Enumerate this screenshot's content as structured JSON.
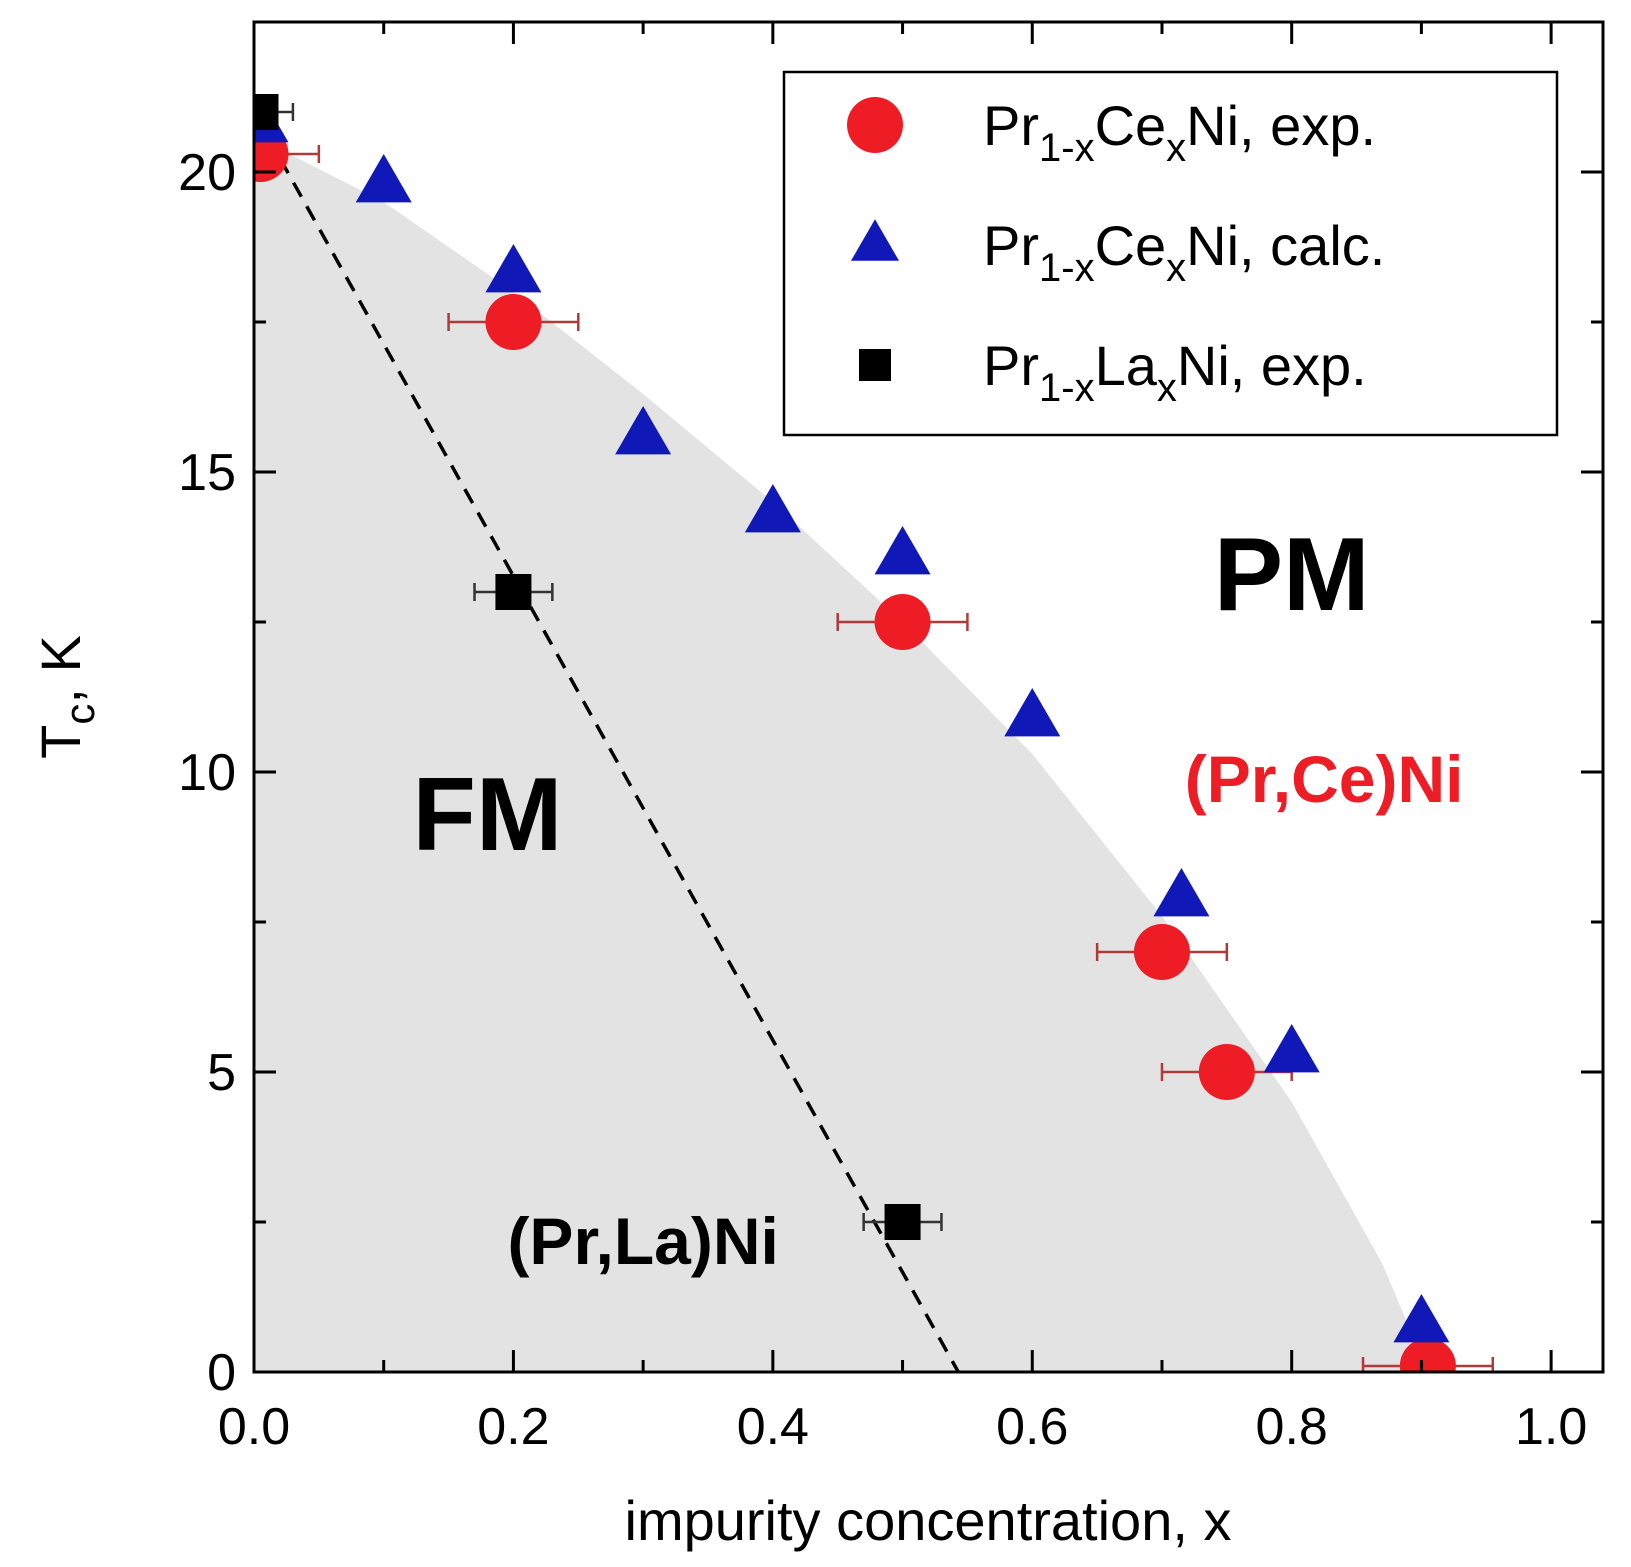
{
  "chart_data": {
    "type": "scatter",
    "xlabel": "impurity concentration, x",
    "ylabel_main": "T",
    "ylabel_sub": "c",
    "ylabel_rest": ", K",
    "xlim": [
      0.0,
      1.04
    ],
    "ylim": [
      0,
      22.5
    ],
    "x_ticks": [
      0.0,
      0.2,
      0.4,
      0.6,
      0.8,
      1.0
    ],
    "x_tick_labels": [
      "0.0",
      "0.2",
      "0.4",
      "0.6",
      "0.8",
      "1.0"
    ],
    "y_ticks": [
      0,
      5,
      10,
      15,
      20
    ],
    "y_tick_labels": [
      "0",
      "5",
      "10",
      "15",
      "20"
    ],
    "x_minor_ticks": [
      0.1,
      0.3,
      0.5,
      0.7,
      0.9
    ],
    "y_minor_ticks": [
      2.5,
      7.5,
      12.5,
      17.5
    ],
    "series": [
      {
        "name": "PrCeNi-exp",
        "legend_main": "Pr",
        "legend_sub1": "1-x",
        "legend_mid": "Ce",
        "legend_sub2": "x",
        "legend_tail": "Ni, exp.",
        "marker": "circle",
        "color": "#ee1c25",
        "errcolor": "#b03a3a",
        "points": [
          {
            "x": 0.005,
            "y": 20.3,
            "xerr": 0.045
          },
          {
            "x": 0.2,
            "y": 17.5,
            "xerr": 0.05
          },
          {
            "x": 0.5,
            "y": 12.5,
            "xerr": 0.05
          },
          {
            "x": 0.7,
            "y": 7.0,
            "xerr": 0.05
          },
          {
            "x": 0.75,
            "y": 5.0,
            "xerr": 0.05
          },
          {
            "x": 0.905,
            "y": 0.1,
            "xerr": 0.05
          }
        ]
      },
      {
        "name": "PrCeNi-calc",
        "legend_main": "Pr",
        "legend_sub1": "1-x",
        "legend_mid": "Ce",
        "legend_sub2": "x",
        "legend_tail": "Ni, calc.",
        "marker": "triangle",
        "color": "#1018b8",
        "points": [
          {
            "x": 0.005,
            "y": 20.8
          },
          {
            "x": 0.1,
            "y": 19.8
          },
          {
            "x": 0.2,
            "y": 18.3
          },
          {
            "x": 0.3,
            "y": 15.6
          },
          {
            "x": 0.4,
            "y": 14.3
          },
          {
            "x": 0.5,
            "y": 13.6
          },
          {
            "x": 0.6,
            "y": 10.9
          },
          {
            "x": 0.715,
            "y": 7.9
          },
          {
            "x": 0.8,
            "y": 5.3
          },
          {
            "x": 0.9,
            "y": 0.8
          }
        ]
      },
      {
        "name": "PrLaNi-exp",
        "legend_main": "Pr",
        "legend_sub1": "1-x",
        "legend_mid": "La",
        "legend_sub2": "x",
        "legend_tail": "Ni, exp.",
        "marker": "square",
        "color": "#000000",
        "errcolor": "#333333",
        "points": [
          {
            "x": 0.005,
            "y": 21.0,
            "xerr": 0.025
          },
          {
            "x": 0.2,
            "y": 13.0,
            "xerr": 0.03
          },
          {
            "x": 0.5,
            "y": 2.5,
            "xerr": 0.03
          }
        ]
      }
    ],
    "dashed_line": {
      "x": [
        0.0,
        0.543
      ],
      "y": [
        21.0,
        0.0
      ]
    },
    "shaded_region": {
      "description_points": [
        {
          "x": 0.0,
          "y": 20.6
        },
        {
          "x": 0.1,
          "y": 19.5
        },
        {
          "x": 0.2,
          "y": 18.0
        },
        {
          "x": 0.3,
          "y": 16.3
        },
        {
          "x": 0.4,
          "y": 14.5
        },
        {
          "x": 0.5,
          "y": 12.5
        },
        {
          "x": 0.6,
          "y": 10.3
        },
        {
          "x": 0.7,
          "y": 7.6
        },
        {
          "x": 0.8,
          "y": 4.5
        },
        {
          "x": 0.87,
          "y": 1.8
        },
        {
          "x": 0.905,
          "y": 0.0
        }
      ],
      "color": "#e3e3e3"
    },
    "annotations": {
      "pm": {
        "text": "PM",
        "x": 0.8,
        "y": 12.7,
        "color": "#000000"
      },
      "fm": {
        "text": "FM",
        "x": 0.18,
        "y": 8.7,
        "color": "#000000"
      },
      "prce": {
        "text": "(Pr,Ce)Ni",
        "x": 0.825,
        "y": 9.5,
        "color": "#ee1c25"
      },
      "prla": {
        "text": "(Pr,La)Ni",
        "x": 0.3,
        "y": 1.8,
        "color": "#000000"
      }
    },
    "legend_position": "top-right"
  }
}
